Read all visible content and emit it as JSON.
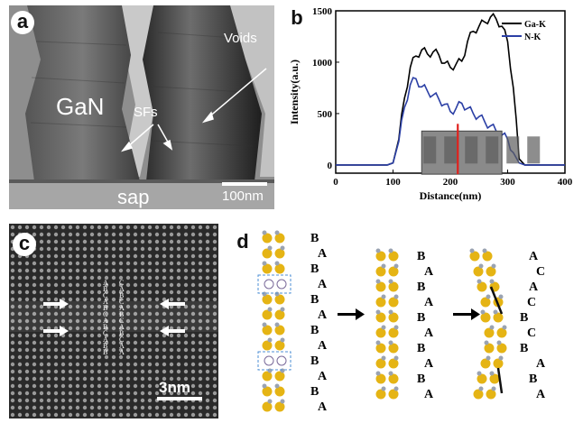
{
  "panel_a": {
    "label": "a",
    "voids_label": "Voids",
    "gan_label": "GaN",
    "sfs_label": "SFs",
    "sap_label": "sap",
    "scale_label": "100nm"
  },
  "panel_b": {
    "label": "b",
    "chart_data": {
      "type": "line",
      "xlabel": "Distance(nm)",
      "ylabel": "Intensity(a.u.)",
      "xlim": [
        0,
        400
      ],
      "ylim": [
        -80,
        1500
      ],
      "xticks": [
        0,
        100,
        200,
        300,
        400
      ],
      "yticks": [
        0,
        500,
        1000,
        1500
      ],
      "legend_position": "top-right",
      "series": [
        {
          "name": "Ga-K",
          "color": "#000000",
          "x": [
            0,
            90,
            100,
            110,
            120,
            130,
            140,
            150,
            160,
            170,
            180,
            190,
            200,
            210,
            220,
            230,
            240,
            250,
            260,
            270,
            280,
            290,
            300,
            310,
            320,
            330,
            340,
            400
          ],
          "y": [
            0,
            0,
            20,
            250,
            650,
            950,
            1060,
            1120,
            1080,
            1100,
            1070,
            990,
            950,
            980,
            1010,
            1200,
            1300,
            1350,
            1390,
            1440,
            1420,
            1350,
            1200,
            750,
            60,
            0,
            0,
            0
          ]
        },
        {
          "name": "N-K",
          "color": "#2b3fa5",
          "x": [
            0,
            90,
            100,
            110,
            120,
            130,
            140,
            150,
            160,
            170,
            180,
            190,
            200,
            210,
            220,
            230,
            240,
            250,
            260,
            270,
            280,
            290,
            300,
            310,
            320,
            330,
            400
          ],
          "y": [
            0,
            0,
            20,
            230,
            560,
            780,
            840,
            760,
            720,
            680,
            640,
            590,
            520,
            550,
            600,
            550,
            500,
            470,
            420,
            380,
            330,
            290,
            250,
            120,
            20,
            0,
            0
          ]
        }
      ],
      "inset_marker_x": 213
    }
  },
  "panel_c": {
    "label": "c",
    "scale_label": "3nm",
    "left_stack": [
      "A",
      "B",
      "C",
      "A",
      "B",
      "C",
      "A",
      "B",
      "C",
      "A",
      "B",
      "B"
    ],
    "right_stack": [
      "C",
      "A",
      "B",
      "C",
      "A",
      "B",
      "C",
      "A",
      "B",
      "C",
      "A",
      "A"
    ]
  },
  "panel_d": {
    "label": "d",
    "col1_letters": [
      "B",
      "A",
      "B",
      "A",
      "B",
      "A",
      "B",
      "A",
      "B",
      "A",
      "B",
      "A"
    ],
    "col2_letters": [
      "B",
      "A",
      "B",
      "A",
      "B",
      "A",
      "B",
      "A",
      "B",
      "A"
    ],
    "col3_letters": [
      "A",
      "C",
      "A",
      "C",
      "B",
      "C",
      "B",
      "A",
      "B",
      "A"
    ],
    "colors": {
      "ga_atom": "#e5b414",
      "n_atom": "#9aa3b2",
      "dash_box": "#4d8fd6"
    }
  }
}
